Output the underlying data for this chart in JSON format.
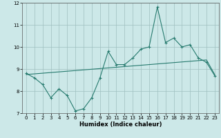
{
  "xlabel": "Humidex (Indice chaleur)",
  "x": [
    0,
    1,
    2,
    3,
    4,
    5,
    6,
    7,
    8,
    9,
    10,
    11,
    12,
    13,
    14,
    15,
    16,
    17,
    18,
    19,
    20,
    21,
    22,
    23
  ],
  "y_main": [
    8.8,
    8.6,
    8.3,
    7.7,
    8.1,
    7.8,
    7.1,
    7.2,
    7.7,
    8.6,
    9.8,
    9.2,
    9.2,
    9.5,
    9.9,
    10.0,
    11.8,
    10.2,
    10.4,
    10.0,
    10.1,
    9.5,
    9.3,
    8.7
  ],
  "y_trend": [
    8.75,
    8.78,
    8.81,
    8.84,
    8.87,
    8.9,
    8.93,
    8.96,
    8.99,
    9.02,
    9.05,
    9.08,
    9.11,
    9.14,
    9.17,
    9.2,
    9.23,
    9.26,
    9.29,
    9.32,
    9.35,
    9.38,
    9.41,
    8.75
  ],
  "line_color": "#267a6e",
  "bg_color": "#cce8e8",
  "grid_color": "#9fbfbf",
  "ylim": [
    7.0,
    12.0
  ],
  "xlim": [
    -0.5,
    23.5
  ],
  "yticks": [
    7,
    8,
    9,
    10,
    11,
    12
  ],
  "xticks": [
    0,
    1,
    2,
    3,
    4,
    5,
    6,
    7,
    8,
    9,
    10,
    11,
    12,
    13,
    14,
    15,
    16,
    17,
    18,
    19,
    20,
    21,
    22,
    23
  ],
  "tick_fontsize": 5.0,
  "xlabel_fontsize": 6.0
}
